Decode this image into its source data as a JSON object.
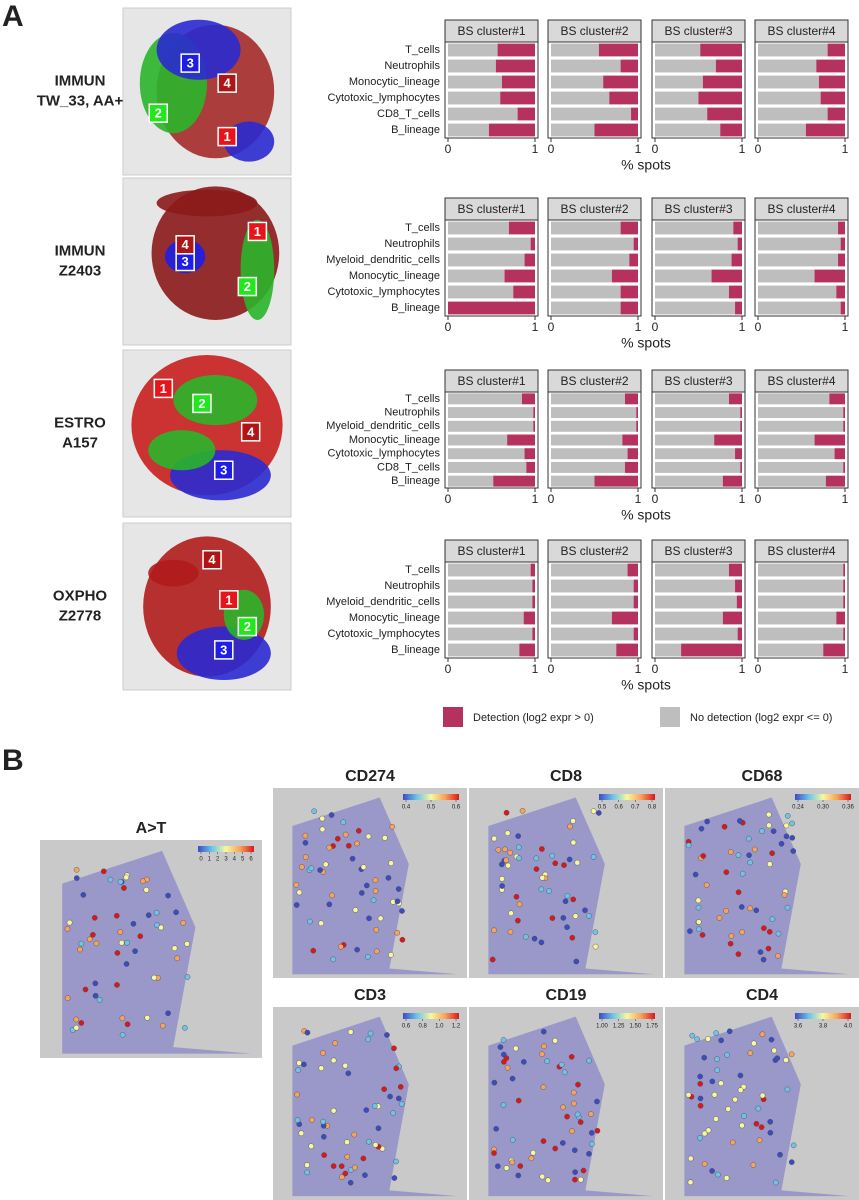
{
  "panel_a": {
    "label": "A"
  },
  "legend": {
    "detection": {
      "name": "Detection (log2 expr > 0)",
      "color": "#b5325f"
    },
    "no_detection": {
      "name": "No detection (log2 expr <= 0)",
      "color": "#bebebe"
    }
  },
  "chart_data": [
    {
      "type": "stacked-barh",
      "row_label": [
        "IMMUN",
        "TW_33, AA+"
      ],
      "spot_labels": [
        "1",
        "2",
        "3",
        "4"
      ],
      "categories": [
        "T_cells",
        "Neutrophils",
        "Monocytic_lineage",
        "Cytotoxic_lymphocytes",
        "CD8_T_cells",
        "B_lineage"
      ],
      "xlim": [
        0,
        1
      ],
      "xticks": [
        0,
        1
      ],
      "xlabel": "% spots",
      "panels": [
        {
          "title": "BS cluster#1",
          "no_detection": [
            0.57,
            0.55,
            0.62,
            0.6,
            0.8,
            0.47
          ],
          "detection": [
            0.43,
            0.45,
            0.38,
            0.4,
            0.2,
            0.53
          ]
        },
        {
          "title": "BS cluster#2",
          "no_detection": [
            0.55,
            0.8,
            0.6,
            0.67,
            0.92,
            0.5
          ],
          "detection": [
            0.45,
            0.2,
            0.4,
            0.33,
            0.08,
            0.5
          ]
        },
        {
          "title": "BS cluster#3",
          "no_detection": [
            0.52,
            0.7,
            0.55,
            0.5,
            0.6,
            0.75
          ],
          "detection": [
            0.48,
            0.3,
            0.45,
            0.5,
            0.4,
            0.25
          ]
        },
        {
          "title": "BS cluster#4",
          "no_detection": [
            0.8,
            0.67,
            0.7,
            0.72,
            0.8,
            0.55
          ],
          "detection": [
            0.2,
            0.33,
            0.3,
            0.28,
            0.2,
            0.45
          ]
        }
      ]
    },
    {
      "type": "stacked-barh",
      "row_label": [
        "IMMUN",
        "Z2403"
      ],
      "spot_labels": [
        "1",
        "2",
        "3",
        "4"
      ],
      "categories": [
        "T_cells",
        "Neutrophils",
        "Myeloid_dendritic_cells",
        "Monocytic_lineage",
        "Cytotoxic_lymphocytes",
        "B_lineage"
      ],
      "xlim": [
        0,
        1
      ],
      "xticks": [
        0,
        1
      ],
      "xlabel": "% spots",
      "panels": [
        {
          "title": "BS cluster#1",
          "no_detection": [
            0.7,
            0.95,
            0.88,
            0.65,
            0.75,
            0
          ],
          "detection": [
            0.3,
            0.05,
            0.12,
            0.35,
            0.25,
            1
          ]
        },
        {
          "title": "BS cluster#2",
          "no_detection": [
            0.8,
            0.95,
            0.9,
            0.7,
            0.8,
            0.8
          ],
          "detection": [
            0.2,
            0.05,
            0.1,
            0.3,
            0.2,
            0.2
          ]
        },
        {
          "title": "BS cluster#3",
          "no_detection": [
            0.9,
            0.95,
            0.88,
            0.65,
            0.85,
            0.92
          ],
          "detection": [
            0.1,
            0.05,
            0.12,
            0.35,
            0.15,
            0.08
          ]
        },
        {
          "title": "BS cluster#4",
          "no_detection": [
            0.92,
            0.95,
            0.92,
            0.65,
            0.9,
            0.95
          ],
          "detection": [
            0.08,
            0.05,
            0.08,
            0.35,
            0.1,
            0.05
          ]
        }
      ]
    },
    {
      "type": "stacked-barh",
      "row_label": [
        "ESTRO",
        "A157"
      ],
      "spot_labels": [
        "1",
        "2",
        "3",
        "4"
      ],
      "categories": [
        "T_cells",
        "Neutrophils",
        "Myeloid_dendritic_cells",
        "Monocytic_lineage",
        "Cytotoxic_lymphocytes",
        "CD8_T_cells",
        "B_lineage"
      ],
      "xlim": [
        0,
        1
      ],
      "xticks": [
        0,
        1
      ],
      "xlabel": "% spots",
      "panels": [
        {
          "title": "BS cluster#1",
          "no_detection": [
            0.85,
            0.98,
            0.98,
            0.68,
            0.88,
            0.9,
            0.52
          ],
          "detection": [
            0.15,
            0.02,
            0.02,
            0.32,
            0.12,
            0.1,
            0.48
          ]
        },
        {
          "title": "BS cluster#2",
          "no_detection": [
            0.85,
            0.98,
            0.98,
            0.82,
            0.88,
            0.85,
            0.5
          ],
          "detection": [
            0.15,
            0.02,
            0.02,
            0.18,
            0.12,
            0.15,
            0.5
          ]
        },
        {
          "title": "BS cluster#3",
          "no_detection": [
            0.85,
            0.98,
            0.98,
            0.68,
            0.92,
            0.98,
            0.78
          ],
          "detection": [
            0.15,
            0.02,
            0.02,
            0.32,
            0.08,
            0.02,
            0.22
          ]
        },
        {
          "title": "BS cluster#4",
          "no_detection": [
            0.82,
            0.98,
            0.98,
            0.65,
            0.88,
            0.98,
            0.78
          ],
          "detection": [
            0.18,
            0.02,
            0.02,
            0.35,
            0.12,
            0.02,
            0.22
          ]
        }
      ]
    },
    {
      "type": "stacked-barh",
      "row_label": [
        "OXPHO",
        "Z2778"
      ],
      "spot_labels": [
        "1",
        "2",
        "3",
        "4"
      ],
      "categories": [
        "T_cells",
        "Neutrophils",
        "Myeloid_dendritic_cells",
        "Monocytic_lineage",
        "Cytotoxic_lymphocytes",
        "B_lineage"
      ],
      "xlim": [
        0,
        1
      ],
      "xticks": [
        0,
        1
      ],
      "xlabel": "% spots",
      "panels": [
        {
          "title": "BS cluster#1",
          "no_detection": [
            0.95,
            0.97,
            0.97,
            0.87,
            0.97,
            0.82
          ],
          "detection": [
            0.05,
            0.03,
            0.03,
            0.13,
            0.03,
            0.18
          ]
        },
        {
          "title": "BS cluster#2",
          "no_detection": [
            0.88,
            0.95,
            0.95,
            0.7,
            0.95,
            0.75
          ],
          "detection": [
            0.12,
            0.05,
            0.05,
            0.3,
            0.05,
            0.25
          ]
        },
        {
          "title": "BS cluster#3",
          "no_detection": [
            0.85,
            0.92,
            0.94,
            0.78,
            0.95,
            0.3
          ],
          "detection": [
            0.15,
            0.08,
            0.06,
            0.22,
            0.05,
            0.7
          ]
        },
        {
          "title": "BS cluster#4",
          "no_detection": [
            0.98,
            0.98,
            0.98,
            0.9,
            0.98,
            0.75
          ],
          "detection": [
            0.02,
            0.02,
            0.02,
            0.1,
            0.02,
            0.25
          ]
        }
      ]
    }
  ],
  "panel_b": {
    "label": "B",
    "maps": [
      {
        "title": "A>T",
        "colorbar_ticks": [
          0,
          1,
          2,
          3,
          4,
          5,
          6
        ]
      },
      {
        "title": "CD274",
        "colorbar_ticks": [
          0.4,
          0.5,
          0.6
        ]
      },
      {
        "title": "CD8",
        "colorbar_ticks": [
          0.5,
          0.6,
          0.7,
          0.8
        ]
      },
      {
        "title": "CD68",
        "colorbar_ticks": [
          0.24,
          {
            "value": 0.3,
            "label": "0.30"
          },
          0.36
        ]
      },
      {
        "title": "CD3",
        "colorbar_ticks": [
          0.6,
          0.8,
          {
            "value": 1,
            "label": "1.0"
          },
          1.2
        ]
      },
      {
        "title": "CD19",
        "colorbar_ticks": [
          {
            "value": 1,
            "label": "1.00"
          },
          1.25,
          {
            "value": 1.5,
            "label": "1.50"
          },
          1.75
        ]
      },
      {
        "title": "CD4",
        "colorbar_ticks": [
          3.6,
          3.8,
          {
            "value": 4,
            "label": "4.0"
          }
        ]
      }
    ]
  }
}
